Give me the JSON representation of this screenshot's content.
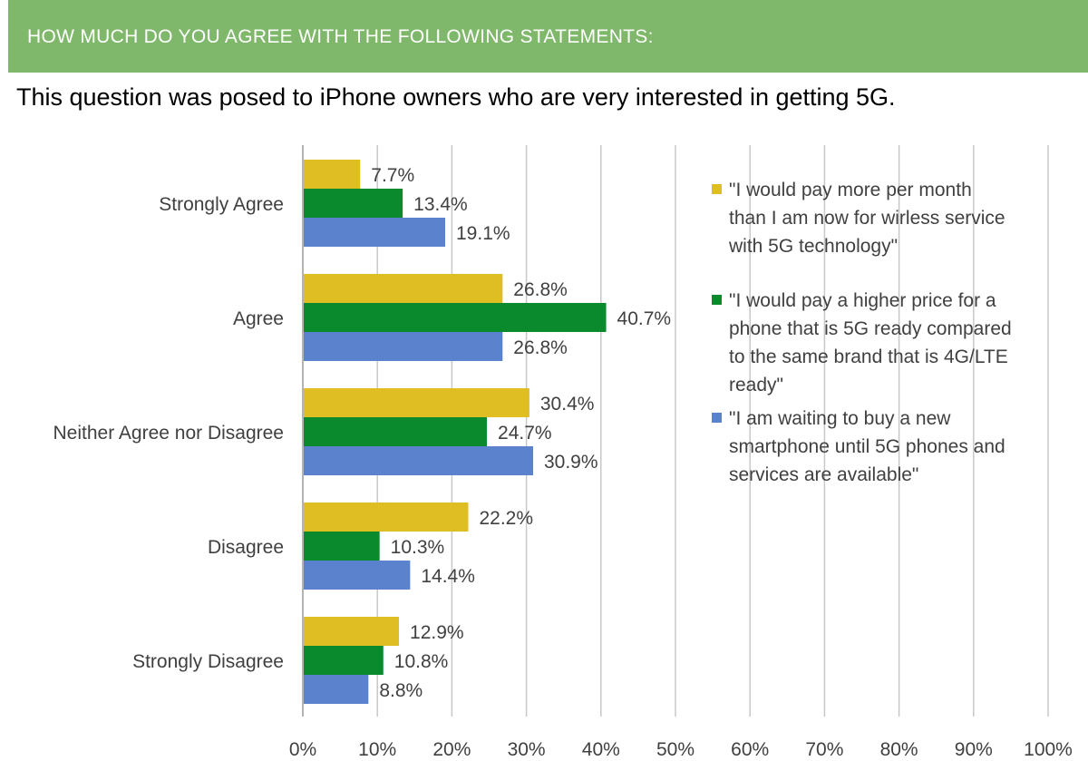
{
  "header": {
    "title": "HOW MUCH DO YOU AGREE WITH THE FOLLOWING STATEMENTS:"
  },
  "subtitle": "This question was posed to iPhone owners who are very interested in getting 5G.",
  "colors": {
    "header_bg": "#7fb86a",
    "series_1": "#dfbe24",
    "series_2": "#0a8a2c",
    "series_3": "#5b82cc",
    "gridline": "#c8c8c8"
  },
  "chart_data": {
    "type": "bar",
    "orientation": "horizontal",
    "categories": [
      "Strongly Agree",
      "Agree",
      "Neither Agree nor Disagree",
      "Disagree",
      "Strongly Disagree"
    ],
    "series": [
      {
        "name": "\"I would pay more per month than I am now for wirless service with 5G technology\"",
        "legend_lines": [
          "\"I would pay more per month",
          "than I am now for wirless service",
          "with 5G technology\""
        ],
        "values": [
          7.7,
          26.8,
          30.4,
          22.2,
          12.9
        ],
        "labels": [
          "7.7%",
          "26.8%",
          "30.4%",
          "22.2%",
          "12.9%"
        ],
        "color": "#dfbe24"
      },
      {
        "name": "\"I would pay a higher price for a phone that is 5G ready compared to the same brand that is 4G/LTE ready\"",
        "legend_lines": [
          "\"I would pay a higher price for a",
          "phone that is 5G ready compared",
          "to the same brand that is 4G/LTE",
          "ready\""
        ],
        "values": [
          13.4,
          40.7,
          24.7,
          10.3,
          10.8
        ],
        "labels": [
          "13.4%",
          "40.7%",
          "24.7%",
          "10.3%",
          "10.8%"
        ],
        "color": "#0a8a2c"
      },
      {
        "name": "\"I am waiting to buy a new smartphone until 5G phones and services are available\"",
        "legend_lines": [
          "\"I am waiting to buy a new",
          "smartphone until 5G phones and",
          "services are available\""
        ],
        "values": [
          19.1,
          26.8,
          30.9,
          14.4,
          8.8
        ],
        "labels": [
          "19.1%",
          "26.8%",
          "30.9%",
          "14.4%",
          "8.8%"
        ],
        "color": "#5b82cc"
      }
    ],
    "xlim": [
      0,
      100
    ],
    "xticks": [
      "0%",
      "10%",
      "20%",
      "30%",
      "40%",
      "50%",
      "60%",
      "70%",
      "80%",
      "90%",
      "100%"
    ],
    "grid": true,
    "legend_position": "right"
  }
}
